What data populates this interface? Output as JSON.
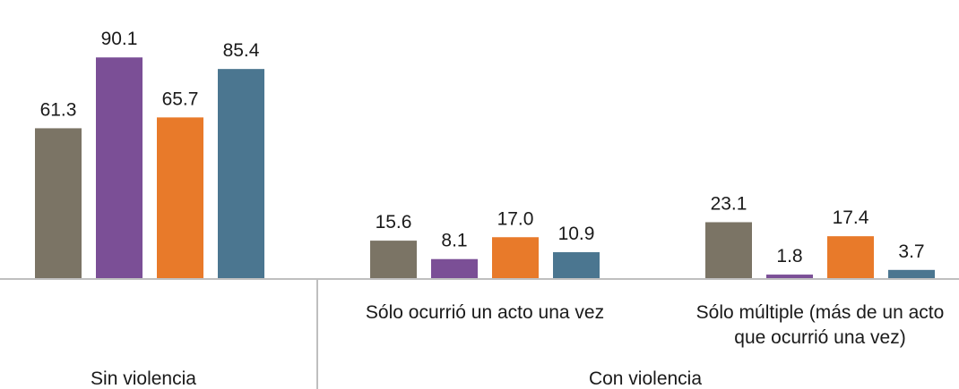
{
  "chart_data": {
    "type": "bar",
    "title": "",
    "xlabel": "",
    "ylabel": "",
    "ylim": [
      0,
      100
    ],
    "grid": false,
    "legend": "none",
    "categories": [
      "Sin violencia",
      "Sólo ocurrió un acto una vez",
      "Sólo múltiple (más de un acto que ocurrió una vez)"
    ],
    "category_label_lines": [
      [
        ""
      ],
      [
        "Sólo ocurrió un acto una vez"
      ],
      [
        "Sólo múltiple (más de un acto",
        "que ocurrió una vez)"
      ]
    ],
    "groups": [
      {
        "label": "Sin violencia",
        "spans": [
          0
        ]
      },
      {
        "label": "Con violencia",
        "spans": [
          1,
          2
        ]
      }
    ],
    "series": [
      {
        "color": "#7b7465",
        "values": [
          61.3,
          15.6,
          23.1
        ],
        "labels": [
          "61.3",
          "15.6",
          "23.1"
        ]
      },
      {
        "color": "#7b4f96",
        "values": [
          90.1,
          8.1,
          1.8
        ],
        "labels": [
          "90.1",
          "8.1",
          "1.8"
        ]
      },
      {
        "color": "#e87a2a",
        "values": [
          65.7,
          17.0,
          17.4
        ],
        "labels": [
          "65.7",
          "17.0",
          "17.4"
        ]
      },
      {
        "color": "#4b7690",
        "values": [
          85.4,
          10.9,
          3.7
        ],
        "labels": [
          "85.4",
          "10.9",
          "3.7"
        ]
      }
    ]
  }
}
